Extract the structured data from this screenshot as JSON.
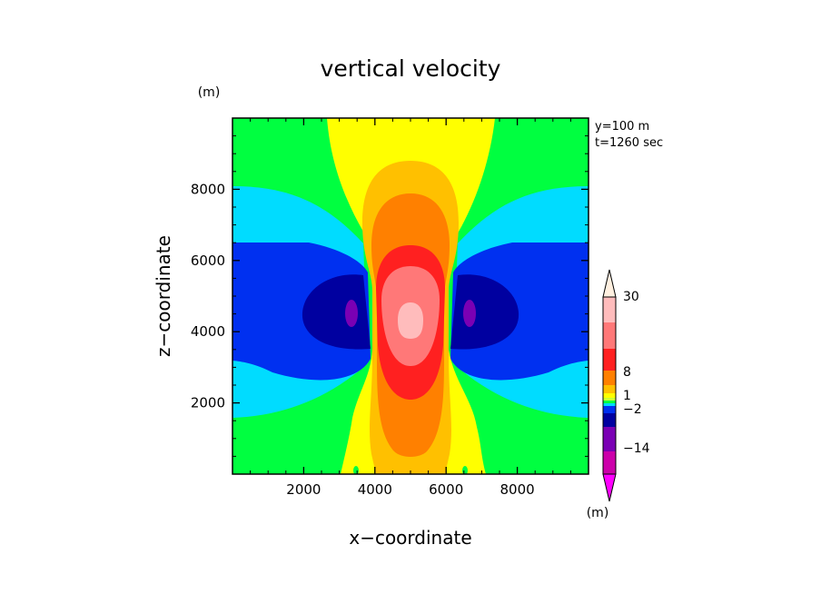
{
  "chart_data": {
    "type": "heatmap",
    "title": "vertical velocity",
    "xlabel": "x−coordinate",
    "ylabel": "z−coordinate",
    "x_unit": "(m)",
    "y_unit": "(m)",
    "colorbar_unit": "(m)",
    "annotations": [
      "y=100 m",
      "t=1260 sec"
    ],
    "xlim": [
      0,
      10000
    ],
    "ylim": [
      0,
      10000
    ],
    "xticks": [
      "2000",
      "4000",
      "6000",
      "8000"
    ],
    "yticks": [
      "2000",
      "4000",
      "6000",
      "8000"
    ],
    "xtick_values": [
      2000,
      4000,
      6000,
      8000
    ],
    "ytick_values": [
      2000,
      4000,
      6000,
      8000
    ],
    "colorbar": {
      "labels": [
        "30",
        "8",
        "1",
        "−2",
        "−14"
      ],
      "label_values": [
        30,
        8,
        1,
        -2,
        -14
      ],
      "colors_bottom_to_top": [
        "#cc00aa",
        "#7a00b4",
        "#0000a0",
        "#0030f0",
        "#00dcff",
        "#00ff40",
        "#ccff33",
        "#ffff00",
        "#ffc000",
        "#ff8000",
        "#ff2020",
        "#ff7878",
        "#ffbcbc"
      ],
      "extend_top_color": "#fff0e0",
      "extend_bottom_color": "#ff00ff"
    },
    "field": {
      "description_levels_present": [
        "green",
        "cyan",
        "blue",
        "navy",
        "purple",
        "yellow",
        "orange",
        "red",
        "pink",
        "light-pink"
      ],
      "updraft_center_x": 5000,
      "updraft_center_z": 4500,
      "downdraft_centers": [
        [
          3400,
          4600
        ],
        [
          6600,
          4600
        ]
      ],
      "domain": [
        0,
        10000
      ]
    }
  }
}
